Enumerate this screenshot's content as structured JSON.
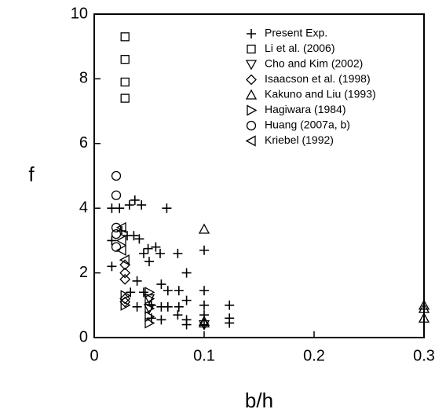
{
  "chart_data": {
    "type": "scatter",
    "x_label": "b/h",
    "y_label": "f",
    "xlim": [
      0,
      0.3
    ],
    "ylim": [
      0,
      10
    ],
    "xticks": [
      0,
      0.1,
      0.2,
      0.3
    ],
    "yticks": [
      0,
      2,
      4,
      6,
      8,
      10
    ],
    "legend": "upper right",
    "series": [
      {
        "name": "Present Exp.",
        "marker": "plus",
        "color": "#000000",
        "x": [
          0.016,
          0.023,
          0.032,
          0.037,
          0.043,
          0.066,
          0.016,
          0.025,
          0.03,
          0.036,
          0.041,
          0.049,
          0.056,
          0.016,
          0.045,
          0.06,
          0.076,
          0.05,
          0.084,
          0.061,
          0.039,
          0.045,
          0.067,
          0.077,
          0.1,
          0.1,
          0.1,
          0.1,
          0.1,
          0.123,
          0.123,
          0.123,
          0.052,
          0.061,
          0.067,
          0.077,
          0.084,
          0.061,
          0.076,
          0.084,
          0.084,
          0.052,
          0.039,
          0.033
        ],
        "y": [
          4.0,
          4.0,
          4.1,
          4.25,
          4.1,
          4.0,
          3.0,
          3.3,
          3.15,
          3.15,
          3.05,
          2.75,
          2.8,
          2.2,
          2.6,
          2.6,
          2.6,
          2.35,
          2.0,
          1.65,
          1.75,
          1.4,
          1.45,
          1.45,
          2.7,
          1.45,
          1.0,
          0.7,
          0.4,
          1.0,
          0.6,
          0.45,
          1.0,
          0.95,
          0.95,
          0.95,
          1.15,
          0.55,
          0.7,
          0.55,
          0.4,
          0.6,
          0.95,
          1.4
        ]
      },
      {
        "name": "Li et al. (2006)",
        "marker": "square",
        "color": "#000000",
        "x": [
          0.028,
          0.028,
          0.028,
          0.028
        ],
        "y": [
          9.3,
          8.6,
          7.9,
          7.4
        ]
      },
      {
        "name": "Cho and Kim (2002)",
        "marker": "tri-down",
        "color": "#000000",
        "x": [
          0.05,
          0.05,
          0.1
        ],
        "y": [
          1.2,
          0.9,
          0.4
        ]
      },
      {
        "name": "Isaacson et al. (1998)",
        "marker": "diamond",
        "color": "#000000",
        "x": [
          0.028,
          0.028,
          0.028,
          0.028,
          0.028
        ],
        "y": [
          2.25,
          2.0,
          1.8,
          1.2,
          1.1
        ]
      },
      {
        "name": "Kakuno and Liu (1993)",
        "marker": "tri-up",
        "color": "#000000",
        "x": [
          0.1,
          0.1,
          0.1,
          0.3,
          0.3,
          0.3
        ],
        "y": [
          3.35,
          0.5,
          0.45,
          1.0,
          0.9,
          0.6
        ]
      },
      {
        "name": "Hagiwara (1984)",
        "marker": "tri-right",
        "color": "#000000",
        "x": [
          0.05,
          0.05,
          0.05,
          0.05,
          0.05,
          0.028,
          0.028
        ],
        "y": [
          1.4,
          1.2,
          0.9,
          0.65,
          0.45,
          1.3,
          1.0
        ]
      },
      {
        "name": "Huang (2007a, b)",
        "marker": "circle",
        "color": "#000000",
        "x": [
          0.02,
          0.02,
          0.02,
          0.02,
          0.02
        ],
        "y": [
          5.0,
          4.4,
          3.4,
          3.2,
          2.8
        ]
      },
      {
        "name": "Kriebel (1992)",
        "marker": "tri-left",
        "color": "#000000",
        "x": [
          0.025,
          0.025,
          0.025,
          0.028
        ],
        "y": [
          3.4,
          3.0,
          2.7,
          2.4
        ]
      }
    ]
  }
}
